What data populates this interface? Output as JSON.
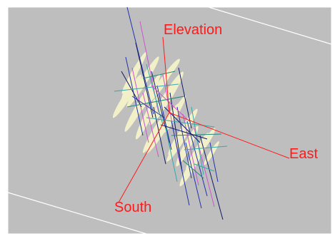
{
  "scene": {
    "background_color": "#bebebe",
    "axis_color": "#ff1a1a",
    "boundary_line_color": "#ffffff",
    "axes": {
      "elevation": "Elevation",
      "east": "East",
      "south": "South"
    },
    "colors": {
      "disc_fill": "#f2f0c8",
      "trace_blue": "#2233aa",
      "trace_navy": "#101a66",
      "trace_magenta": "#cc55cc",
      "trace_cyan": "#33aaaa",
      "trace_teal": "#228877"
    }
  }
}
